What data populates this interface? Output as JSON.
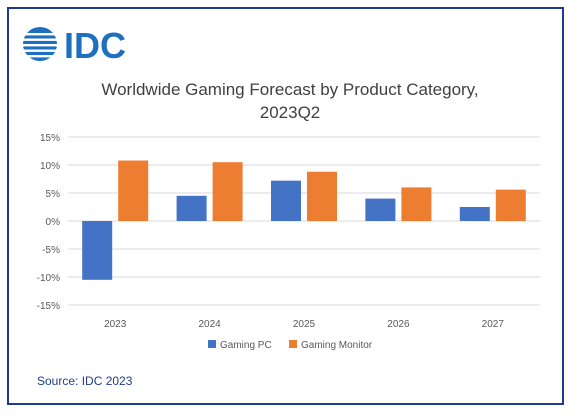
{
  "logo": {
    "text": "IDC",
    "color": "#1f6fbf"
  },
  "source": "Source: IDC 2023",
  "colors": {
    "gaming_pc": "#4472c4",
    "gaming_monitor": "#ed7d31",
    "border": "#1f3b8f",
    "grid": "#d9d9d9",
    "axis_text": "#595959",
    "title_text": "#404040"
  },
  "chart_data": {
    "type": "bar",
    "title": "Worldwide Gaming Forecast by Product Category, 2023Q2",
    "title_lines": [
      "Worldwide Gaming Forecast by Product Category,",
      "2023Q2"
    ],
    "categories": [
      "2023",
      "2024",
      "2025",
      "2026",
      "2027"
    ],
    "series": [
      {
        "name": "Gaming PC",
        "values": [
          -10.5,
          4.5,
          7.2,
          4.0,
          2.5
        ]
      },
      {
        "name": "Gaming Monitor",
        "values": [
          10.8,
          10.5,
          8.8,
          6.0,
          5.6
        ]
      }
    ],
    "ylim": [
      -15,
      15
    ],
    "yticks": [
      15,
      10,
      5,
      0,
      -5,
      -10,
      -15
    ],
    "ytick_labels": [
      "15%",
      "10%",
      "5%",
      "0%",
      "-5%",
      "-10%",
      "-15%"
    ],
    "xlabel": "",
    "ylabel": "",
    "grid": true,
    "legend": "bottom"
  }
}
